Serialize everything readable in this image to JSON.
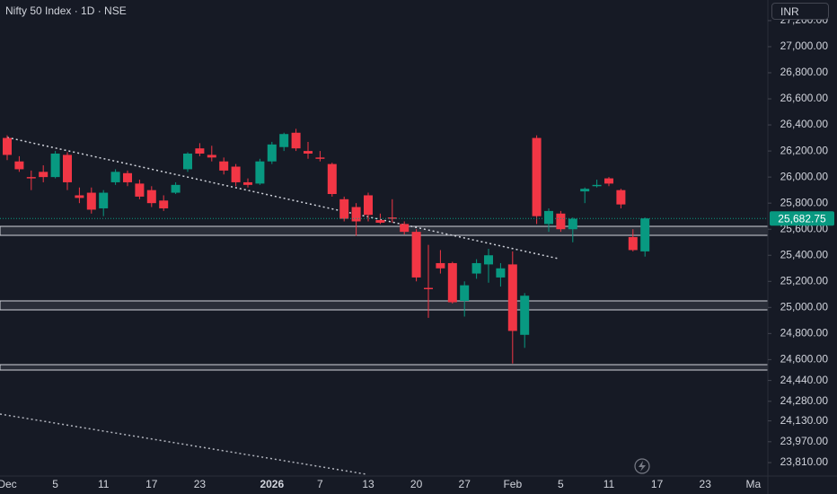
{
  "header": {
    "title": "Nifty 50 Index · 1D · NSE",
    "currency": "INR"
  },
  "chart_data": {
    "type": "candlestick",
    "categories": [
      "Dec",
      null,
      null,
      null,
      "5",
      null,
      null,
      null,
      "11",
      null,
      null,
      null,
      "17",
      null,
      null,
      null,
      "23",
      null,
      null,
      null,
      null,
      null,
      "2026",
      null,
      null,
      null,
      "7",
      null,
      null,
      null,
      "13",
      null,
      null,
      null,
      "20",
      null,
      null,
      null,
      "27",
      null,
      null,
      null,
      "Feb",
      null,
      null,
      null,
      "5",
      null,
      null,
      null,
      "11",
      null,
      null,
      null,
      "17",
      null,
      null,
      null,
      "23",
      null,
      null,
      null,
      "Ma"
    ],
    "open": [
      26300,
      26120,
      26000,
      26040,
      26000,
      26170,
      25860,
      25880,
      25760,
      25960,
      26030,
      25950,
      25900,
      25820,
      25880,
      26060,
      26220,
      26170,
      26120,
      26080,
      25960,
      25950,
      26120,
      26230,
      26340,
      26200,
      26150,
      26100,
      25830,
      25770,
      25860,
      25670,
      25690,
      25640,
      25580,
      25150,
      25340,
      25340,
      25050,
      25260,
      25330,
      25230,
      25330,
      24790,
      26300,
      25640,
      25720,
      25600,
      25890,
      25930,
      25990,
      25900,
      25540,
      25430,
      null,
      null,
      null,
      null,
      null,
      null,
      null,
      null,
      null
    ],
    "high": [
      26320,
      26160,
      26050,
      26090,
      26200,
      26190,
      25920,
      25920,
      25900,
      26060,
      26050,
      25980,
      25930,
      25860,
      25960,
      26190,
      26260,
      26240,
      26150,
      26100,
      25990,
      26140,
      26270,
      26340,
      26370,
      26270,
      26200,
      26110,
      25850,
      25800,
      25880,
      25720,
      25830,
      25660,
      25600,
      25480,
      25440,
      25350,
      25200,
      25370,
      25450,
      25340,
      25430,
      25110,
      26320,
      25760,
      25740,
      25690,
      25920,
      25980,
      26000,
      25910,
      25600,
      25690,
      null,
      null,
      null,
      null,
      null,
      null,
      null,
      null,
      null
    ],
    "low": [
      26130,
      26040,
      25900,
      25960,
      25990,
      25900,
      25800,
      25720,
      25700,
      25940,
      25930,
      25830,
      25770,
      25740,
      25870,
      26040,
      26160,
      26120,
      26020,
      25930,
      25920,
      25940,
      26100,
      26200,
      26200,
      26140,
      26120,
      25850,
      25660,
      25550,
      25660,
      25640,
      25650,
      25560,
      25200,
      24920,
      25260,
      25030,
      24930,
      25220,
      25190,
      25160,
      24570,
      24690,
      25640,
      25580,
      25580,
      25500,
      25800,
      25920,
      25930,
      25760,
      25430,
      25390,
      null,
      null,
      null,
      null,
      null,
      null,
      null,
      null,
      null
    ],
    "close": [
      26170,
      26060,
      25990,
      26000,
      26180,
      25960,
      25840,
      25750,
      25880,
      26040,
      25960,
      25850,
      25800,
      25760,
      25940,
      26180,
      26180,
      26150,
      26050,
      25960,
      25940,
      26120,
      26250,
      26330,
      26220,
      26180,
      26140,
      25870,
      25680,
      25660,
      25710,
      25650,
      25680,
      25580,
      25230,
      25140,
      25300,
      25040,
      25170,
      25340,
      25400,
      25300,
      24820,
      25090,
      25700,
      25740,
      25600,
      25680,
      25910,
      25940,
      25950,
      25790,
      25440,
      25682.75,
      null,
      null,
      null,
      null,
      null,
      null,
      null,
      null,
      null
    ],
    "last_price_label": "25,682.75",
    "up_color": "#089981",
    "down_color": "#f23645",
    "ylim": [
      23707,
      27358
    ],
    "yticks": [
      {
        "value": 27200,
        "label": "27,200.00"
      },
      {
        "value": 27000,
        "label": "27,000.00"
      },
      {
        "value": 26800,
        "label": "26,800.00"
      },
      {
        "value": 26600,
        "label": "26,600.00"
      },
      {
        "value": 26400,
        "label": "26,400.00"
      },
      {
        "value": 26200,
        "label": "26,200.00"
      },
      {
        "value": 26000,
        "label": "26,000.00"
      },
      {
        "value": 25800,
        "label": "25,800.00"
      },
      {
        "value": 25600,
        "label": "25,600.00"
      },
      {
        "value": 25400,
        "label": "25,400.00"
      },
      {
        "value": 25200,
        "label": "25,200.00"
      },
      {
        "value": 25000,
        "label": "25,000.00"
      },
      {
        "value": 24800,
        "label": "24,800.00"
      },
      {
        "value": 24600,
        "label": "24,600.00"
      },
      {
        "value": 24440,
        "label": "24,440.00"
      },
      {
        "value": 24280,
        "label": "24,280.00"
      },
      {
        "value": 24130,
        "label": "24,130.00"
      },
      {
        "value": 23970,
        "label": "23,970.00"
      },
      {
        "value": 23810,
        "label": "23,810.00"
      }
    ]
  }
}
